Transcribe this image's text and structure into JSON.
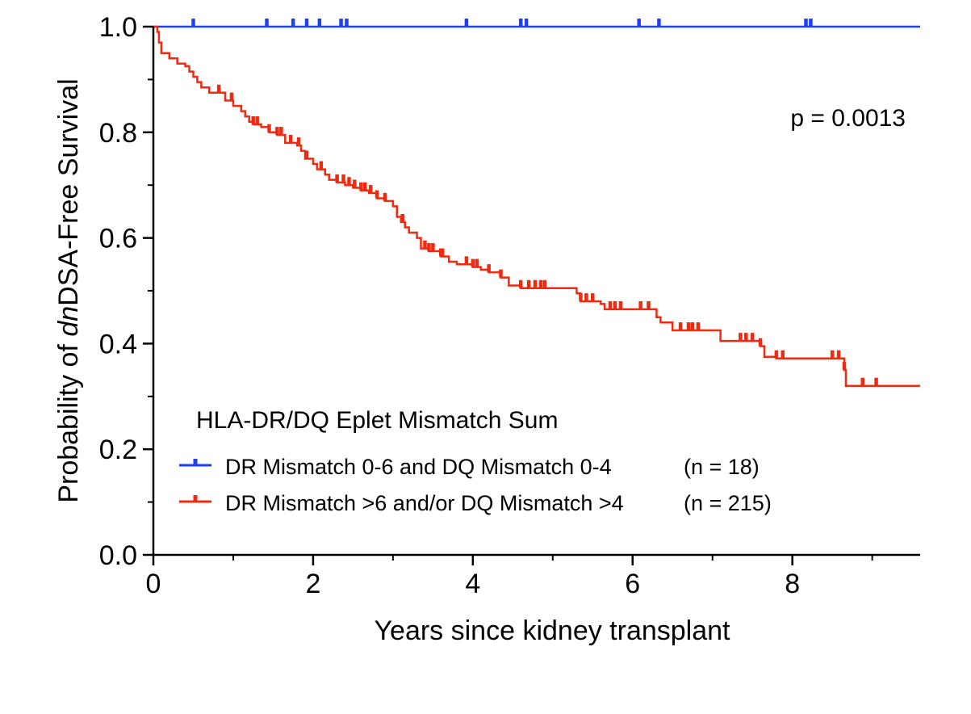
{
  "chart_data": {
    "type": "line",
    "subtype": "kaplan-meier",
    "ylabel_parts": [
      "Probability of ",
      "dn",
      "DSA-Free Survival"
    ],
    "xlabel": "Years since kidney transplant",
    "xlim": [
      0,
      9.6
    ],
    "ylim": [
      0,
      1
    ],
    "xticks": [
      0,
      2,
      4,
      6,
      8
    ],
    "xtick_labels": [
      "0",
      "2",
      "4",
      "6",
      "8"
    ],
    "yticks": [
      0,
      0.2,
      0.4,
      0.6,
      0.8,
      1.0
    ],
    "ytick_labels": [
      "0.0",
      "0.2",
      "0.4",
      "0.6",
      "0.8",
      "1.0"
    ],
    "grid": false,
    "annotation": "p = 0.0013",
    "legend_title": "HLA-DR/DQ Eplet Mismatch Sum",
    "legend_position": "bottom-left",
    "series": [
      {
        "name": "DR Mismatch 0-6 and DQ Mismatch 0-4",
        "n_label": "(n = 18)",
        "color": "#1f3ff2",
        "steps": [
          [
            0,
            1.0
          ],
          [
            9.6,
            1.0
          ]
        ],
        "censored": [
          0.5,
          1.42,
          1.75,
          1.92,
          2.08,
          2.35,
          2.42,
          3.92,
          4.6,
          4.67,
          6.08,
          6.33,
          8.17,
          8.23
        ]
      },
      {
        "name": "DR Mismatch >6 and/or DQ Mismatch >4",
        "n_label": "(n = 215)",
        "color": "#ee2a10",
        "steps": [
          [
            0,
            1.0
          ],
          [
            0.05,
            0.99
          ],
          [
            0.07,
            0.97
          ],
          [
            0.1,
            0.95
          ],
          [
            0.2,
            0.94
          ],
          [
            0.3,
            0.93
          ],
          [
            0.4,
            0.925
          ],
          [
            0.45,
            0.915
          ],
          [
            0.5,
            0.905
          ],
          [
            0.55,
            0.895
          ],
          [
            0.6,
            0.885
          ],
          [
            0.7,
            0.875
          ],
          [
            0.9,
            0.86
          ],
          [
            1.0,
            0.85
          ],
          [
            1.1,
            0.84
          ],
          [
            1.15,
            0.83
          ],
          [
            1.2,
            0.82
          ],
          [
            1.25,
            0.815
          ],
          [
            1.35,
            0.81
          ],
          [
            1.45,
            0.8
          ],
          [
            1.55,
            0.795
          ],
          [
            1.65,
            0.78
          ],
          [
            1.8,
            0.775
          ],
          [
            1.85,
            0.765
          ],
          [
            1.9,
            0.75
          ],
          [
            2.0,
            0.74
          ],
          [
            2.05,
            0.73
          ],
          [
            2.15,
            0.72
          ],
          [
            2.2,
            0.71
          ],
          [
            2.3,
            0.705
          ],
          [
            2.4,
            0.7
          ],
          [
            2.5,
            0.695
          ],
          [
            2.6,
            0.69
          ],
          [
            2.7,
            0.685
          ],
          [
            2.8,
            0.675
          ],
          [
            2.9,
            0.67
          ],
          [
            3.0,
            0.66
          ],
          [
            3.05,
            0.64
          ],
          [
            3.1,
            0.63
          ],
          [
            3.15,
            0.62
          ],
          [
            3.2,
            0.61
          ],
          [
            3.3,
            0.6
          ],
          [
            3.35,
            0.58
          ],
          [
            3.45,
            0.575
          ],
          [
            3.6,
            0.565
          ],
          [
            3.7,
            0.555
          ],
          [
            3.8,
            0.55
          ],
          [
            4.0,
            0.545
          ],
          [
            4.1,
            0.54
          ],
          [
            4.2,
            0.535
          ],
          [
            4.35,
            0.525
          ],
          [
            4.45,
            0.51
          ],
          [
            4.6,
            0.505
          ],
          [
            4.75,
            0.505
          ],
          [
            5.3,
            0.495
          ],
          [
            5.35,
            0.48
          ],
          [
            5.6,
            0.475
          ],
          [
            5.65,
            0.465
          ],
          [
            6.3,
            0.45
          ],
          [
            6.35,
            0.44
          ],
          [
            6.5,
            0.425
          ],
          [
            7.1,
            0.405
          ],
          [
            7.6,
            0.395
          ],
          [
            7.65,
            0.375
          ],
          [
            7.8,
            0.372
          ],
          [
            8.65,
            0.35
          ],
          [
            8.67,
            0.32
          ],
          [
            9.6,
            0.32
          ]
        ],
        "censored": [
          0.82,
          0.98,
          1.25,
          1.3,
          1.45,
          1.55,
          1.6,
          1.72,
          1.82,
          1.92,
          2.1,
          2.3,
          2.38,
          2.45,
          2.52,
          2.6,
          2.65,
          2.72,
          2.8,
          2.9,
          3.12,
          3.4,
          3.45,
          3.5,
          3.6,
          3.62,
          3.92,
          4.0,
          4.05,
          4.2,
          4.35,
          4.6,
          4.7,
          4.78,
          4.85,
          4.9,
          5.35,
          5.42,
          5.5,
          5.72,
          5.78,
          5.85,
          6.1,
          6.2,
          6.6,
          6.7,
          6.75,
          6.82,
          7.35,
          7.42,
          7.5,
          7.6,
          7.8,
          7.88,
          8.5,
          8.58,
          8.65,
          8.88,
          9.05
        ]
      }
    ]
  }
}
